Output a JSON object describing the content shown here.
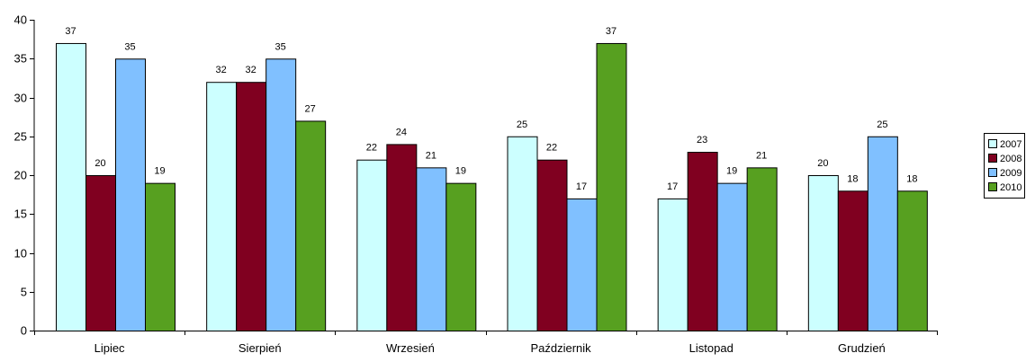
{
  "chart_data": {
    "type": "bar",
    "categories": [
      "Lipiec",
      "Sierpień",
      "Wrzesień",
      "Październik",
      "Listopad",
      "Grudzień"
    ],
    "series": [
      {
        "name": "2007",
        "color": "#ccffff",
        "values": [
          37,
          32,
          22,
          25,
          17,
          20
        ]
      },
      {
        "name": "2008",
        "color": "#800020",
        "values": [
          20,
          32,
          24,
          22,
          23,
          18
        ]
      },
      {
        "name": "2009",
        "color": "#80c0ff",
        "values": [
          35,
          35,
          21,
          17,
          19,
          25
        ]
      },
      {
        "name": "2010",
        "color": "#57a020",
        "values": [
          19,
          27,
          19,
          37,
          21,
          18
        ]
      }
    ],
    "ylim": [
      0,
      40
    ],
    "yticks": [
      0,
      5,
      10,
      15,
      20,
      25,
      30,
      35,
      40
    ],
    "title": "",
    "xlabel": "",
    "ylabel": "",
    "grid": false,
    "legend": "right"
  }
}
